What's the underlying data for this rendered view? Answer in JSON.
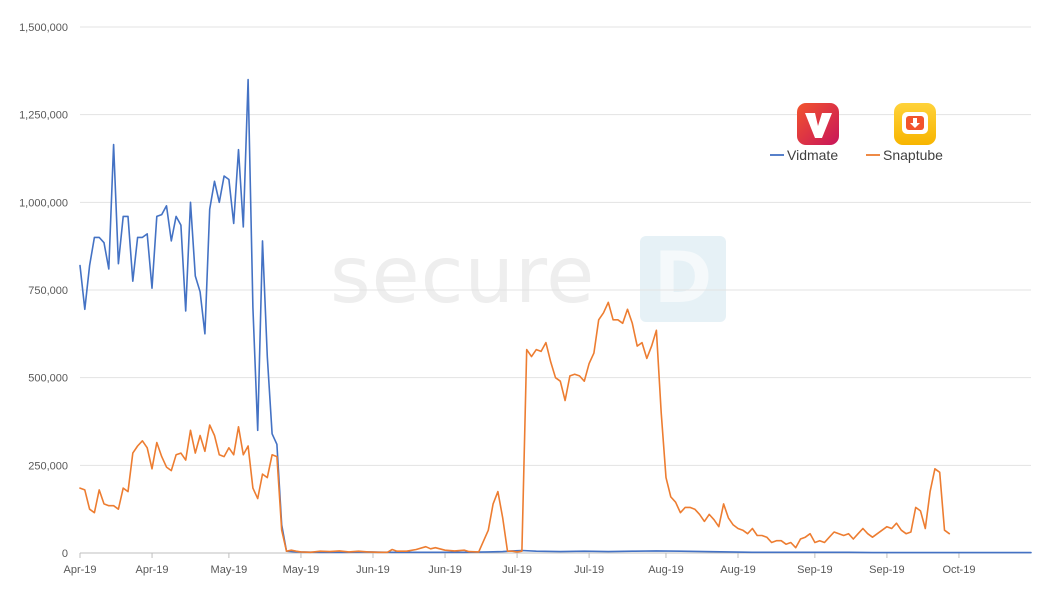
{
  "chart_data": {
    "type": "line",
    "title": "",
    "xlabel": "",
    "ylabel": "",
    "ylim": [
      0,
      1500000
    ],
    "x_range_days": [
      0,
      198
    ],
    "y_ticks": [
      {
        "value": 0,
        "label": "0"
      },
      {
        "value": 250000,
        "label": "250,000"
      },
      {
        "value": 500000,
        "label": "500,000"
      },
      {
        "value": 750000,
        "label": "750,000"
      },
      {
        "value": 1000000,
        "label": "1,000,000"
      },
      {
        "value": 1250000,
        "label": "1,250,000"
      },
      {
        "value": 1500000,
        "label": "1,500,000"
      }
    ],
    "x_ticks": [
      {
        "day": 0,
        "label": "Apr-19"
      },
      {
        "day": 15,
        "label": "Apr-19"
      },
      {
        "day": 31,
        "label": "May-19"
      },
      {
        "day": 46,
        "label": "May-19"
      },
      {
        "day": 61,
        "label": "Jun-19"
      },
      {
        "day": 76,
        "label": "Jun-19"
      },
      {
        "day": 91,
        "label": "Jul-19"
      },
      {
        "day": 106,
        "label": "Jul-19"
      },
      {
        "day": 122,
        "label": "Aug-19"
      },
      {
        "day": 137,
        "label": "Aug-19"
      },
      {
        "day": 153,
        "label": "Sep-19"
      },
      {
        "day": 168,
        "label": "Sep-19"
      },
      {
        "day": 183,
        "label": "Oct-19"
      }
    ],
    "grid": "horizontal",
    "legend": "top-right",
    "series": [
      {
        "name": "Vidmate",
        "color": "#4472c4",
        "icon": "vidmate-logo-icon",
        "points": [
          [
            0,
            820000
          ],
          [
            1,
            695000
          ],
          [
            2,
            820000
          ],
          [
            3,
            900000
          ],
          [
            4,
            900000
          ],
          [
            5,
            885000
          ],
          [
            6,
            810000
          ],
          [
            7,
            1165000
          ],
          [
            8,
            825000
          ],
          [
            9,
            960000
          ],
          [
            10,
            960000
          ],
          [
            11,
            775000
          ],
          [
            12,
            900000
          ],
          [
            13,
            900000
          ],
          [
            14,
            910000
          ],
          [
            15,
            755000
          ],
          [
            16,
            960000
          ],
          [
            17,
            965000
          ],
          [
            18,
            990000
          ],
          [
            19,
            890000
          ],
          [
            20,
            960000
          ],
          [
            21,
            935000
          ],
          [
            22,
            690000
          ],
          [
            23,
            1000000
          ],
          [
            24,
            790000
          ],
          [
            25,
            745000
          ],
          [
            26,
            625000
          ],
          [
            27,
            980000
          ],
          [
            28,
            1060000
          ],
          [
            29,
            1000000
          ],
          [
            30,
            1075000
          ],
          [
            31,
            1065000
          ],
          [
            32,
            940000
          ],
          [
            33,
            1150000
          ],
          [
            34,
            930000
          ],
          [
            35,
            1350000
          ],
          [
            36,
            700000
          ],
          [
            37,
            350000
          ],
          [
            38,
            890000
          ],
          [
            39,
            560000
          ],
          [
            40,
            340000
          ],
          [
            41,
            310000
          ],
          [
            42,
            80000
          ],
          [
            43,
            5000
          ],
          [
            44,
            4000
          ],
          [
            45,
            3000
          ],
          [
            50,
            2000
          ],
          [
            55,
            2000
          ],
          [
            60,
            3000
          ],
          [
            65,
            2000
          ],
          [
            70,
            2000
          ],
          [
            75,
            2000
          ],
          [
            80,
            2000
          ],
          [
            85,
            3000
          ],
          [
            88,
            4000
          ],
          [
            90,
            6000
          ],
          [
            92,
            7000
          ],
          [
            95,
            5000
          ],
          [
            100,
            4000
          ],
          [
            105,
            5000
          ],
          [
            110,
            4000
          ],
          [
            115,
            5000
          ],
          [
            120,
            6000
          ],
          [
            125,
            5000
          ],
          [
            130,
            4000
          ],
          [
            135,
            3000
          ],
          [
            140,
            2000
          ],
          [
            145,
            2000
          ],
          [
            150,
            2000
          ],
          [
            155,
            2000
          ],
          [
            160,
            2000
          ],
          [
            165,
            1000
          ],
          [
            170,
            1000
          ],
          [
            175,
            1000
          ],
          [
            180,
            1000
          ],
          [
            185,
            1000
          ],
          [
            190,
            1000
          ],
          [
            195,
            1000
          ],
          [
            198,
            1000
          ]
        ]
      },
      {
        "name": "Snaptube",
        "color": "#ed7d31",
        "icon": "snaptube-logo-icon",
        "points": [
          [
            0,
            185000
          ],
          [
            1,
            180000
          ],
          [
            2,
            125000
          ],
          [
            3,
            115000
          ],
          [
            4,
            180000
          ],
          [
            5,
            140000
          ],
          [
            6,
            135000
          ],
          [
            7,
            135000
          ],
          [
            8,
            125000
          ],
          [
            9,
            185000
          ],
          [
            10,
            175000
          ],
          [
            11,
            285000
          ],
          [
            12,
            305000
          ],
          [
            13,
            320000
          ],
          [
            14,
            300000
          ],
          [
            15,
            240000
          ],
          [
            16,
            315000
          ],
          [
            17,
            275000
          ],
          [
            18,
            245000
          ],
          [
            19,
            235000
          ],
          [
            20,
            280000
          ],
          [
            21,
            285000
          ],
          [
            22,
            265000
          ],
          [
            23,
            350000
          ],
          [
            24,
            285000
          ],
          [
            25,
            335000
          ],
          [
            26,
            290000
          ],
          [
            27,
            365000
          ],
          [
            28,
            335000
          ],
          [
            29,
            280000
          ],
          [
            30,
            275000
          ],
          [
            31,
            300000
          ],
          [
            32,
            280000
          ],
          [
            33,
            360000
          ],
          [
            34,
            280000
          ],
          [
            35,
            305000
          ],
          [
            36,
            185000
          ],
          [
            37,
            155000
          ],
          [
            38,
            225000
          ],
          [
            39,
            215000
          ],
          [
            40,
            280000
          ],
          [
            41,
            275000
          ],
          [
            42,
            65000
          ],
          [
            43,
            5000
          ],
          [
            44,
            8000
          ],
          [
            45,
            5000
          ],
          [
            46,
            3000
          ],
          [
            48,
            2000
          ],
          [
            50,
            5000
          ],
          [
            52,
            4000
          ],
          [
            54,
            6000
          ],
          [
            56,
            3000
          ],
          [
            58,
            5000
          ],
          [
            60,
            3000
          ],
          [
            62,
            2000
          ],
          [
            64,
            2000
          ],
          [
            65,
            10000
          ],
          [
            66,
            5000
          ],
          [
            68,
            5000
          ],
          [
            70,
            10000
          ],
          [
            72,
            18000
          ],
          [
            73,
            12000
          ],
          [
            74,
            15000
          ],
          [
            76,
            8000
          ],
          [
            78,
            6000
          ],
          [
            80,
            8000
          ],
          [
            81,
            4000
          ],
          [
            83,
            3000
          ],
          [
            85,
            65000
          ],
          [
            86,
            140000
          ],
          [
            87,
            175000
          ],
          [
            88,
            100000
          ],
          [
            89,
            5000
          ],
          [
            90,
            5000
          ],
          [
            91,
            3000
          ],
          [
            92,
            5000
          ],
          [
            93,
            580000
          ],
          [
            94,
            560000
          ],
          [
            95,
            580000
          ],
          [
            96,
            575000
          ],
          [
            97,
            600000
          ],
          [
            98,
            545000
          ],
          [
            99,
            500000
          ],
          [
            100,
            490000
          ],
          [
            101,
            435000
          ],
          [
            102,
            505000
          ],
          [
            103,
            510000
          ],
          [
            104,
            505000
          ],
          [
            105,
            490000
          ],
          [
            106,
            540000
          ],
          [
            107,
            570000
          ],
          [
            108,
            665000
          ],
          [
            109,
            685000
          ],
          [
            110,
            715000
          ],
          [
            111,
            665000
          ],
          [
            112,
            665000
          ],
          [
            113,
            655000
          ],
          [
            114,
            695000
          ],
          [
            115,
            655000
          ],
          [
            116,
            590000
          ],
          [
            117,
            600000
          ],
          [
            118,
            555000
          ],
          [
            119,
            590000
          ],
          [
            120,
            635000
          ],
          [
            121,
            400000
          ],
          [
            122,
            215000
          ],
          [
            123,
            160000
          ],
          [
            124,
            145000
          ],
          [
            125,
            115000
          ],
          [
            126,
            130000
          ],
          [
            127,
            130000
          ],
          [
            128,
            125000
          ],
          [
            129,
            110000
          ],
          [
            130,
            90000
          ],
          [
            131,
            110000
          ],
          [
            132,
            95000
          ],
          [
            133,
            75000
          ],
          [
            134,
            140000
          ],
          [
            135,
            100000
          ],
          [
            136,
            80000
          ],
          [
            137,
            70000
          ],
          [
            138,
            65000
          ],
          [
            139,
            55000
          ],
          [
            140,
            70000
          ],
          [
            141,
            50000
          ],
          [
            142,
            50000
          ],
          [
            143,
            45000
          ],
          [
            144,
            30000
          ],
          [
            145,
            35000
          ],
          [
            146,
            35000
          ],
          [
            147,
            25000
          ],
          [
            148,
            30000
          ],
          [
            149,
            15000
          ],
          [
            150,
            40000
          ],
          [
            151,
            45000
          ],
          [
            152,
            55000
          ],
          [
            153,
            30000
          ],
          [
            154,
            35000
          ],
          [
            155,
            30000
          ],
          [
            156,
            45000
          ],
          [
            157,
            60000
          ],
          [
            158,
            55000
          ],
          [
            159,
            50000
          ],
          [
            160,
            55000
          ],
          [
            161,
            40000
          ],
          [
            162,
            55000
          ],
          [
            163,
            70000
          ],
          [
            164,
            55000
          ],
          [
            165,
            45000
          ],
          [
            166,
            55000
          ],
          [
            167,
            65000
          ],
          [
            168,
            75000
          ],
          [
            169,
            70000
          ],
          [
            170,
            85000
          ],
          [
            171,
            65000
          ],
          [
            172,
            55000
          ],
          [
            173,
            60000
          ],
          [
            174,
            130000
          ],
          [
            175,
            120000
          ],
          [
            176,
            70000
          ],
          [
            177,
            175000
          ],
          [
            178,
            240000
          ],
          [
            179,
            230000
          ],
          [
            180,
            65000
          ],
          [
            181,
            55000
          ]
        ]
      }
    ],
    "watermark": "secure",
    "watermark_mark": "D"
  }
}
